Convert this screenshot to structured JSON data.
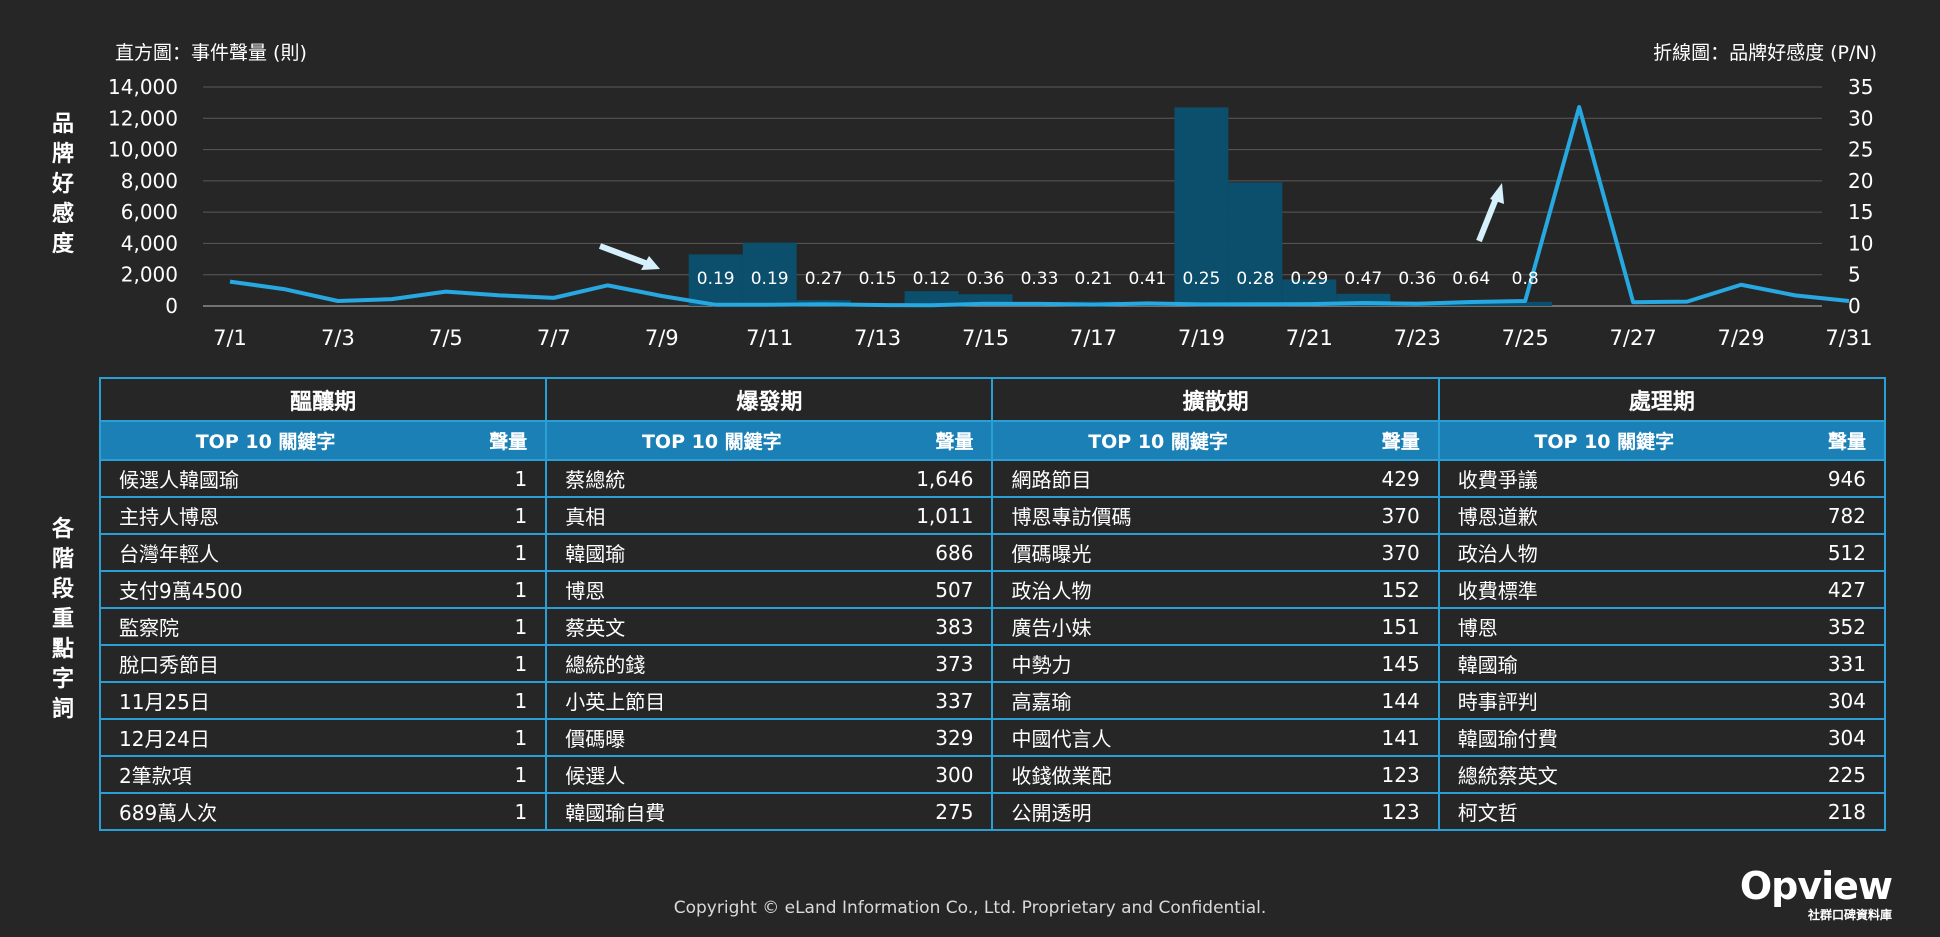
{
  "side_labels": {
    "top": [
      "品",
      "牌",
      "好",
      "感",
      "度"
    ],
    "bottom": [
      "各",
      "階",
      "段",
      "重",
      "點",
      "字",
      "詞"
    ]
  },
  "chart_data": {
    "type": "bar+line",
    "y_left_title": "直方圖：事件聲量 (則)",
    "y_right_title": "折線圖：品牌好感度 (P/N)",
    "y_left_ticks": [
      "14,000",
      "12,000",
      "10,000",
      "8,000",
      "6,000",
      "4,000",
      "2,000",
      "0"
    ],
    "y_right_ticks": [
      "35",
      "30",
      "25",
      "20",
      "15",
      "10",
      "5",
      "0"
    ],
    "y_left_range": [
      0,
      14000
    ],
    "y_right_range": [
      0,
      35
    ],
    "x_tick_labels": [
      "7/1",
      "7/3",
      "7/5",
      "7/7",
      "7/9",
      "7/11",
      "7/13",
      "7/15",
      "7/17",
      "7/19",
      "7/21",
      "7/23",
      "7/25",
      "7/27",
      "7/29",
      "7/31"
    ],
    "days": [
      1,
      2,
      3,
      4,
      5,
      6,
      7,
      8,
      9,
      10,
      11,
      12,
      13,
      14,
      15,
      16,
      17,
      18,
      19,
      20,
      21,
      22,
      23,
      24,
      25,
      26,
      27,
      28,
      29,
      30,
      31
    ],
    "volume_series": {
      "name": "事件聲量",
      "color": "#0b4f6c",
      "values": [
        0,
        0,
        0,
        0,
        0,
        0,
        0,
        0,
        0,
        3300,
        4050,
        380,
        150,
        950,
        750,
        260,
        280,
        250,
        12700,
        7900,
        1700,
        780,
        280,
        260,
        270,
        0,
        0,
        0,
        0,
        0,
        0
      ]
    },
    "sentiment_series": {
      "name": "品牌好感度",
      "color": "#27a8e0",
      "values": [
        3.9,
        2.7,
        0.8,
        1.1,
        2.3,
        1.7,
        1.3,
        3.3,
        1.6,
        0.19,
        0.19,
        0.27,
        0.15,
        0.12,
        0.36,
        0.33,
        0.21,
        0.41,
        0.25,
        0.28,
        0.29,
        0.47,
        0.36,
        0.64,
        0.8,
        31.8,
        0.6,
        0.7,
        3.4,
        1.7,
        0.8
      ]
    },
    "data_labels": [
      {
        "day": 10,
        "text": "0.19"
      },
      {
        "day": 11,
        "text": "0.19"
      },
      {
        "day": 12,
        "text": "0.27"
      },
      {
        "day": 13,
        "text": "0.15"
      },
      {
        "day": 14,
        "text": "0.12"
      },
      {
        "day": 15,
        "text": "0.36"
      },
      {
        "day": 16,
        "text": "0.33"
      },
      {
        "day": 17,
        "text": "0.21"
      },
      {
        "day": 18,
        "text": "0.41"
      },
      {
        "day": 19,
        "text": "0.25"
      },
      {
        "day": 20,
        "text": "0.28"
      },
      {
        "day": 21,
        "text": "0.29"
      },
      {
        "day": 22,
        "text": "0.47"
      },
      {
        "day": 23,
        "text": "0.36"
      },
      {
        "day": 24,
        "text": "0.64"
      },
      {
        "day": 25,
        "text": "0.8"
      }
    ],
    "grid": true
  },
  "table": {
    "keyword_header": "TOP 10 關鍵字",
    "volume_header": "聲量",
    "phases": [
      {
        "name": "醞釀期",
        "rows": [
          {
            "kw": "候選人韓國瑜",
            "vol": "1"
          },
          {
            "kw": "主持人博恩",
            "vol": "1"
          },
          {
            "kw": "台灣年輕人",
            "vol": "1"
          },
          {
            "kw": "支付9萬4500",
            "vol": "1"
          },
          {
            "kw": "監察院",
            "vol": "1"
          },
          {
            "kw": "脫口秀節目",
            "vol": "1"
          },
          {
            "kw": "11月25日",
            "vol": "1"
          },
          {
            "kw": "12月24日",
            "vol": "1"
          },
          {
            "kw": "2筆款項",
            "vol": "1"
          },
          {
            "kw": "689萬人次",
            "vol": "1"
          }
        ]
      },
      {
        "name": "爆發期",
        "rows": [
          {
            "kw": "蔡總統",
            "vol": "1,646"
          },
          {
            "kw": "真相",
            "vol": "1,011"
          },
          {
            "kw": "韓國瑜",
            "vol": "686"
          },
          {
            "kw": "博恩",
            "vol": "507"
          },
          {
            "kw": "蔡英文",
            "vol": "383"
          },
          {
            "kw": "總統的錢",
            "vol": "373"
          },
          {
            "kw": "小英上節目",
            "vol": "337"
          },
          {
            "kw": "價碼曝",
            "vol": "329"
          },
          {
            "kw": "候選人",
            "vol": "300"
          },
          {
            "kw": "韓國瑜自費",
            "vol": "275"
          }
        ]
      },
      {
        "name": "擴散期",
        "rows": [
          {
            "kw": "網路節目",
            "vol": "429"
          },
          {
            "kw": "博恩專訪價碼",
            "vol": "370"
          },
          {
            "kw": "價碼曝光",
            "vol": "370"
          },
          {
            "kw": "政治人物",
            "vol": "152"
          },
          {
            "kw": "廣告小妹",
            "vol": "151"
          },
          {
            "kw": "中勢力",
            "vol": "145"
          },
          {
            "kw": "高嘉瑜",
            "vol": "144"
          },
          {
            "kw": "中國代言人",
            "vol": "141"
          },
          {
            "kw": "收錢做業配",
            "vol": "123"
          },
          {
            "kw": "公開透明",
            "vol": "123"
          }
        ]
      },
      {
        "name": "處理期",
        "rows": [
          {
            "kw": "收費爭議",
            "vol": "946"
          },
          {
            "kw": "博恩道歉",
            "vol": "782"
          },
          {
            "kw": "政治人物",
            "vol": "512"
          },
          {
            "kw": "收費標準",
            "vol": "427"
          },
          {
            "kw": "博恩",
            "vol": "352"
          },
          {
            "kw": "韓國瑜",
            "vol": "331"
          },
          {
            "kw": "時事評判",
            "vol": "304"
          },
          {
            "kw": "韓國瑜付費",
            "vol": "304"
          },
          {
            "kw": "總統蔡英文",
            "vol": "225"
          },
          {
            "kw": "柯文哲",
            "vol": "218"
          }
        ]
      }
    ]
  },
  "footer": {
    "copyright": "Copyright © eLand Information Co., Ltd. Proprietary and Confidential.",
    "brand_name": "Opview",
    "brand_subtitle": "社群口碑資料庫"
  },
  "colors": {
    "background": "#262626",
    "bar": "#0b4f6c",
    "line": "#27a8e0",
    "table_border": "#2a9fd6",
    "table_subheader": "#1a80b6",
    "arrow": "#d6f1fb"
  }
}
